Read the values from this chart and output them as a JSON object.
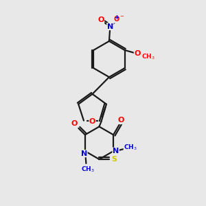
{
  "bg_color": "#e8e8e8",
  "bond_color": "#1a1a1a",
  "atom_colors": {
    "O": "#ff0000",
    "N": "#0000cc",
    "S": "#cccc00",
    "C": "#1a1a1a"
  }
}
